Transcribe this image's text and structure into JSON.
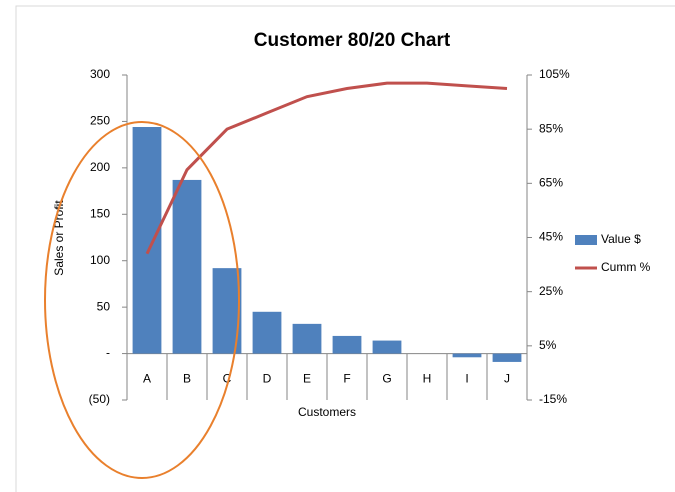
{
  "chart_data": {
    "type": "bar",
    "title": "Customer 80/20 Chart",
    "categories": [
      "A",
      "B",
      "C",
      "D",
      "E",
      "F",
      "G",
      "H",
      "I",
      "J"
    ],
    "series": [
      {
        "name": "Value $",
        "type": "bar",
        "color": "#4f81bd",
        "values": [
          244,
          187,
          92,
          45,
          32,
          19,
          14,
          0,
          -4,
          -9
        ]
      },
      {
        "name": "Cumm %",
        "type": "line",
        "axis": "y2",
        "color": "#c0504d",
        "values": [
          39,
          70,
          85,
          91,
          97,
          100,
          102,
          102,
          101,
          100
        ]
      }
    ],
    "ylabel": "Sales or Profit",
    "xlabel": "Customers",
    "ylim": [
      -50,
      300
    ],
    "yticks": [
      300,
      250,
      200,
      150,
      100,
      50,
      {
        "value": 0,
        "label": "-"
      },
      {
        "value": -50,
        "label": "(50)"
      }
    ],
    "y2lim": [
      -15,
      105
    ],
    "y2ticks": [
      {
        "value": 105,
        "label": "105%"
      },
      {
        "value": 85,
        "label": "85%"
      },
      {
        "value": 65,
        "label": "65%"
      },
      {
        "value": 45,
        "label": "45%"
      },
      {
        "value": 25,
        "label": "25%"
      },
      {
        "value": 5,
        "label": "5%"
      },
      {
        "value": -15,
        "label": "-15%"
      }
    ],
    "grid": false,
    "legend": "right"
  }
}
